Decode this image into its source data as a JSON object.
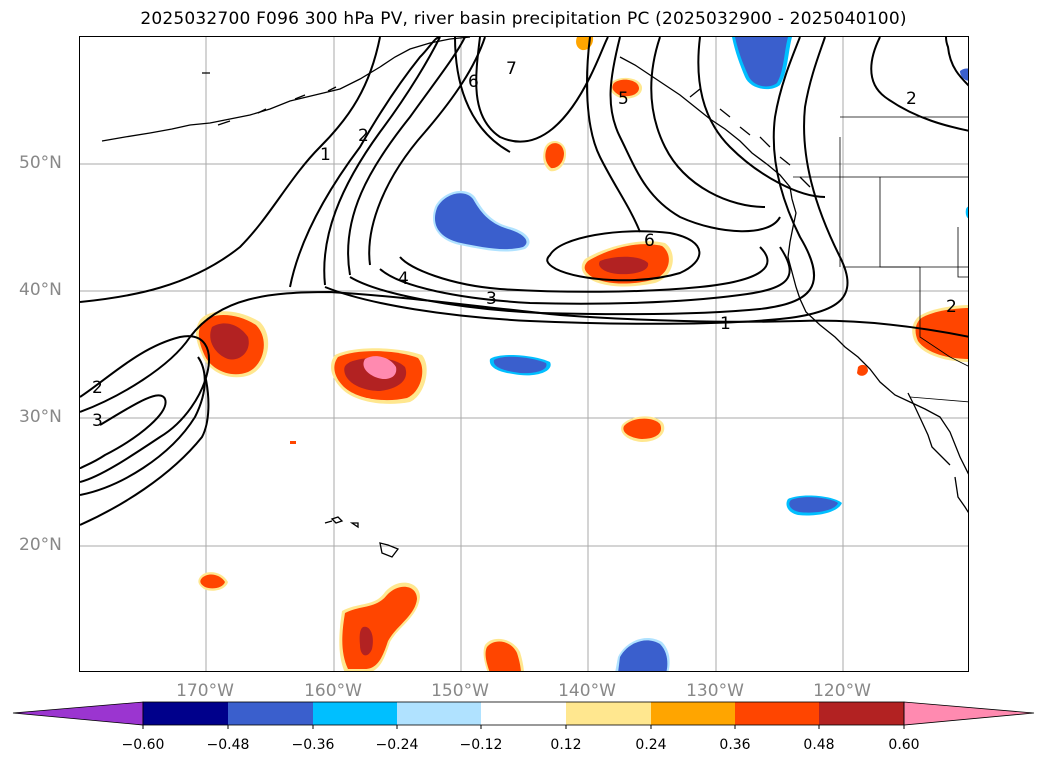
{
  "title": "2025032700 F096 300 hPa PV, river basin precipitation PC (2025032900 - 2025040100)",
  "lat_labels": [
    "50°N",
    "40°N",
    "30°N",
    "20°N"
  ],
  "lon_labels": [
    "170°W",
    "160°W",
    "150°W",
    "140°W",
    "130°W",
    "120°W"
  ],
  "contour_labels": [
    "1",
    "2",
    "3",
    "4",
    "5",
    "6",
    "7"
  ],
  "colorbar": {
    "ticks": [
      "−0.60",
      "−0.48",
      "−0.36",
      "−0.24",
      "−0.12",
      "0.12",
      "0.24",
      "0.36",
      "0.48",
      "0.60"
    ],
    "colors": [
      "#9b35d0",
      "#00008b",
      "#3a5fcd",
      "#00bfff",
      "#b0e2ff",
      "#ffffff",
      "#ffe78f",
      "#ffa500",
      "#ff4500",
      "#b22222",
      "#ff8ab0"
    ]
  }
}
